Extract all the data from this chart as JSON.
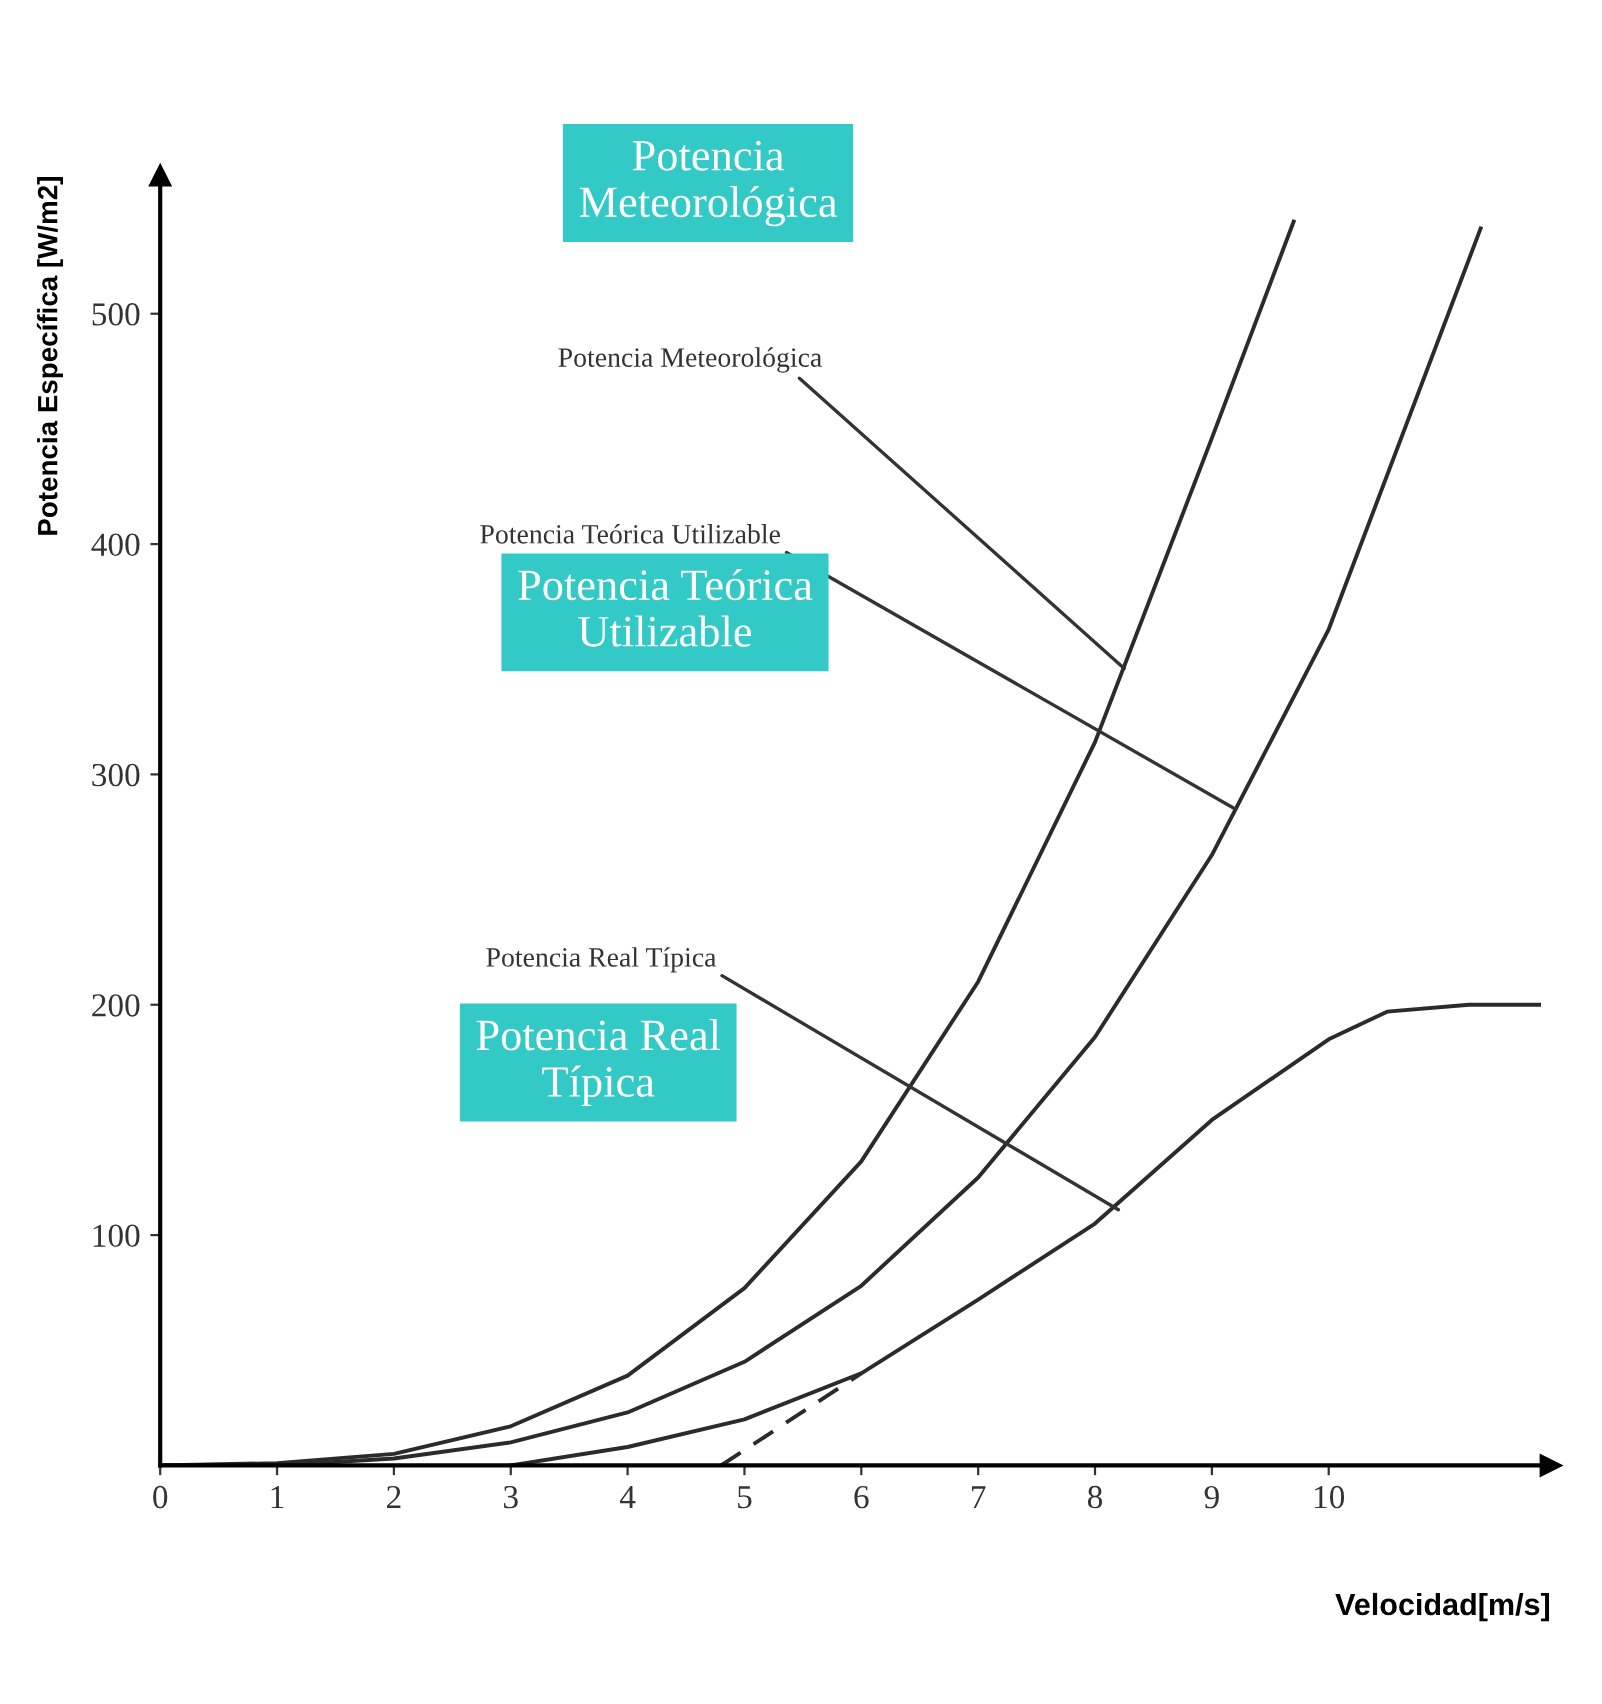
{
  "chart_data": {
    "type": "line",
    "xlabel": "Velocidad[m/s]",
    "ylabel": "Potencia Específica [W/m2]",
    "xlim": [
      0,
      11.9
    ],
    "ylim": [
      0,
      560
    ],
    "xticks": [
      0,
      1,
      2,
      3,
      4,
      5,
      6,
      7,
      8,
      9,
      10
    ],
    "yticks": [
      100,
      200,
      300,
      400,
      500
    ],
    "grid": false,
    "legend": false,
    "marker": "none",
    "series": [
      {
        "color": "#2b2b2b",
        "line_style": "solid",
        "x": [
          0,
          1,
          2,
          3,
          4,
          5,
          6,
          7,
          8,
          9,
          9.7
        ],
        "values": [
          0,
          1,
          5,
          17,
          39,
          77,
          132,
          210,
          314,
          446,
          540
        ]
      },
      {
        "color": "#2b2b2b",
        "line_style": "solid",
        "x": [
          0,
          1,
          2,
          3,
          4,
          5,
          6,
          7,
          8,
          9,
          10,
          11.3
        ],
        "values": [
          0,
          0,
          3,
          10,
          23,
          45,
          78,
          125,
          186,
          265,
          363,
          537
        ]
      },
      {
        "color": "#2b2b2b",
        "line_style": "solid",
        "x": [
          3,
          4,
          5,
          6,
          7,
          8,
          9,
          10,
          10.5,
          11.2,
          11.8
        ],
        "values": [
          0,
          8,
          20,
          40,
          72,
          105,
          150,
          185,
          197,
          200,
          200
        ]
      },
      {
        "color": "#2b2b2b",
        "line_style": "dashed",
        "x": [
          4.8,
          6
        ],
        "values": [
          0,
          40
        ]
      }
    ],
    "annotations": [
      {
        "text": "Potencia Meteorológica",
        "x": 8.25,
        "y": 346
      },
      {
        "text": "Potencia Teórica Utilizable",
        "x": 9.2,
        "y": 285
      },
      {
        "text": "Potencia Real Típica",
        "x": 8.2,
        "y": 111
      },
      "Potencia\nMeteorológica",
      "Potencia Teórica\nUtilizable",
      "Potencia Real\nTípica"
    ]
  }
}
